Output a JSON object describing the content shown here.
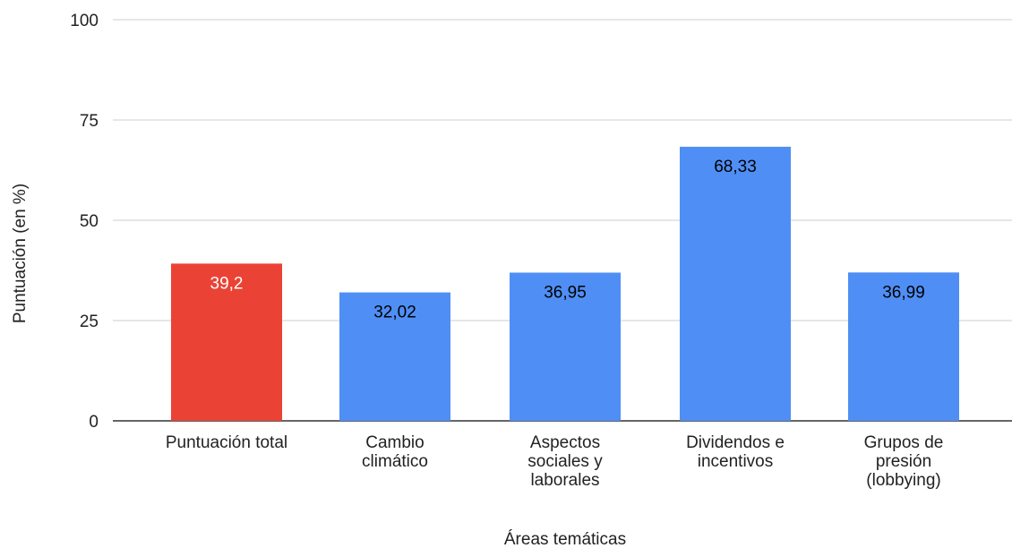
{
  "chart_data": {
    "type": "bar",
    "categories": [
      [
        "Puntuación total"
      ],
      [
        "Cambio",
        "climático"
      ],
      [
        "Aspectos",
        "sociales y",
        "laborales"
      ],
      [
        "Dividendos e",
        "incentivos"
      ],
      [
        "Grupos de",
        "presión",
        "(lobbying)"
      ]
    ],
    "values": [
      39.2,
      32.02,
      36.95,
      68.33,
      36.99
    ],
    "data_labels": [
      "39,2",
      "32,02",
      "36,95",
      "68,33",
      "36,99"
    ],
    "bar_colors": [
      "#ea4335",
      "#4f8ff5",
      "#4f8ff5",
      "#4f8ff5",
      "#4f8ff5"
    ],
    "label_colors": [
      "#ffffff",
      "#000000",
      "#000000",
      "#000000",
      "#000000"
    ],
    "xlabel": "Áreas temáticas",
    "ylabel": "Puntuación (en %)",
    "ylim": [
      0,
      100
    ],
    "yticks": [
      0,
      25,
      50,
      75,
      100
    ],
    "grid": true,
    "gridline_color": "#cccccc",
    "axis_line_color": "#333333"
  }
}
